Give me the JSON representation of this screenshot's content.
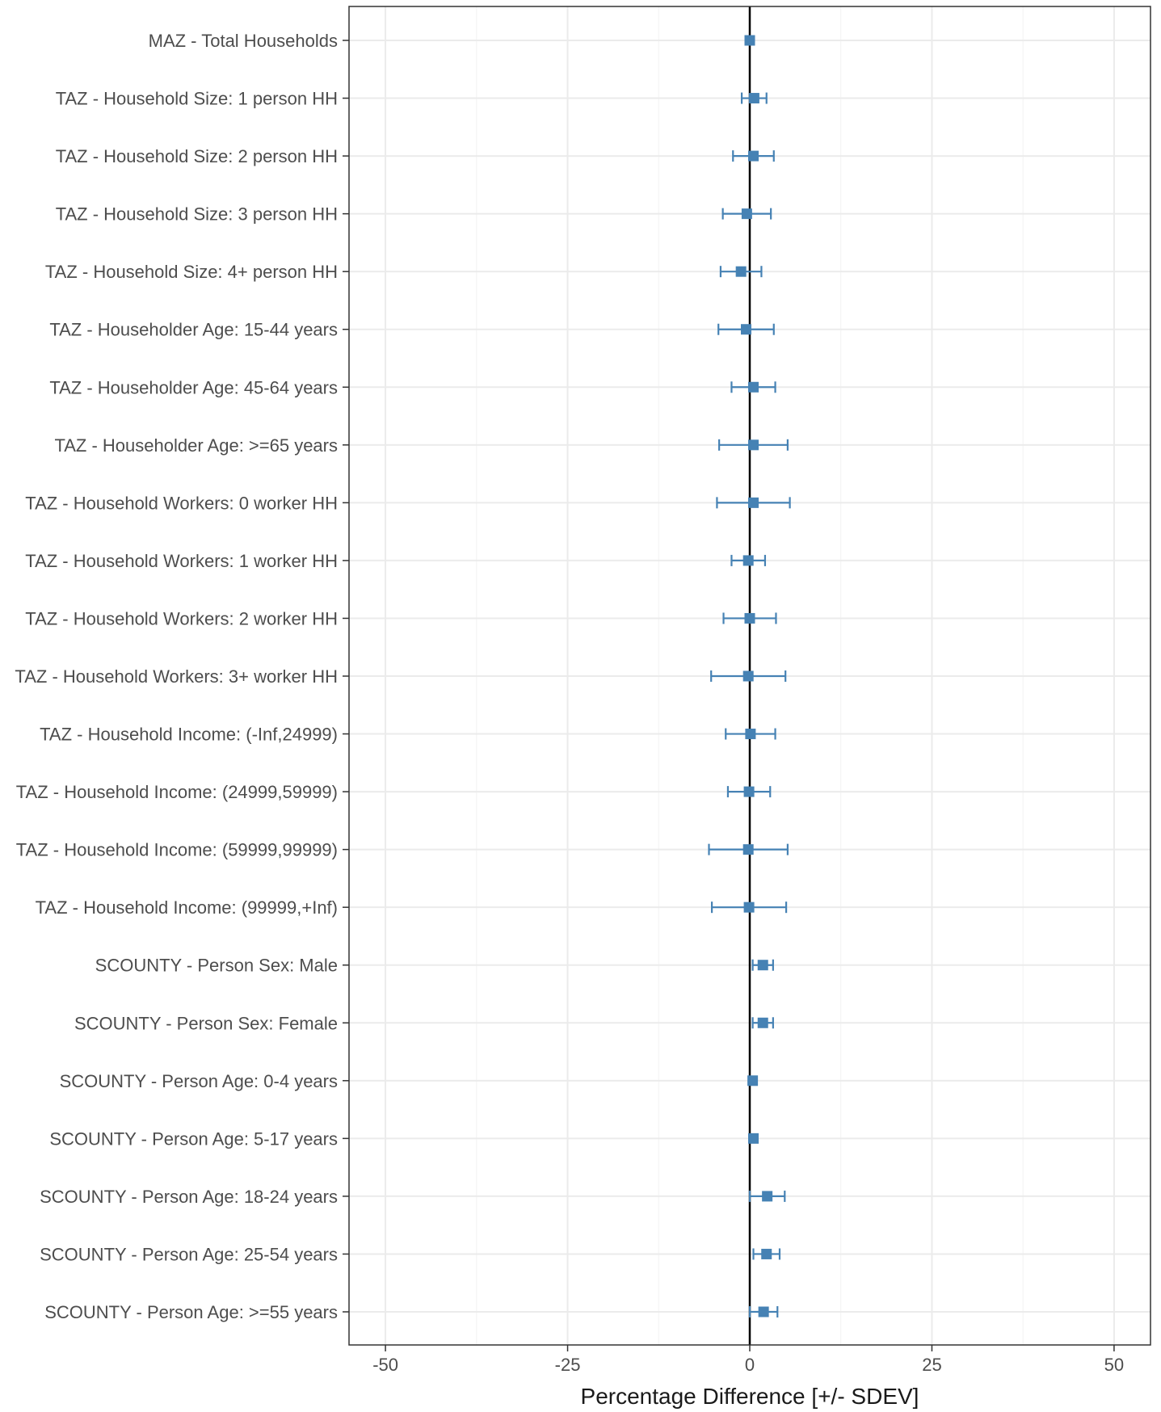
{
  "chart_data": {
    "type": "scatter",
    "title": "",
    "xlabel": "Percentage Difference [+/- SDEV]",
    "ylabel": "",
    "xlim": [
      -55,
      55
    ],
    "xticks": [
      -50,
      -25,
      0,
      25,
      50
    ],
    "xtick_labels": [
      "-50",
      "-25",
      "0",
      "25",
      "50"
    ],
    "grid": true,
    "reference_line_x": 0,
    "marker_color": "#4682b4",
    "errorbar_color": "#4682b4",
    "categories": [
      "MAZ - Total Households",
      "TAZ - Household Size: 1 person HH",
      "TAZ - Household Size: 2 person HH",
      "TAZ - Household Size: 3 person HH",
      "TAZ - Household Size: 4+ person HH",
      "TAZ - Householder Age: 15-44 years",
      "TAZ - Householder Age: 45-64 years",
      "TAZ - Householder Age: >=65 years",
      "TAZ - Household Workers: 0 worker HH",
      "TAZ - Household Workers: 1 worker HH",
      "TAZ - Household Workers: 2 worker HH",
      "TAZ - Household Workers: 3+ worker HH",
      "TAZ - Household Income: (-Inf,24999)",
      "TAZ - Household Income: (24999,59999)",
      "TAZ - Household Income: (59999,99999)",
      "TAZ - Household Income: (99999,+Inf)",
      "SCOUNTY - Person Sex: Male",
      "SCOUNTY - Person Sex: Female",
      "SCOUNTY - Person Age: 0-4 years",
      "SCOUNTY - Person Age: 5-17 years",
      "SCOUNTY - Person Age: 18-24 years",
      "SCOUNTY - Person Age: 25-54 years",
      "SCOUNTY - Person Age: >=55 years"
    ],
    "values": [
      0.0,
      0.6,
      0.5,
      -0.4,
      -1.2,
      -0.5,
      0.5,
      0.5,
      0.5,
      -0.2,
      0.0,
      -0.2,
      0.1,
      -0.1,
      -0.2,
      -0.1,
      1.8,
      1.8,
      0.4,
      0.5,
      2.4,
      2.3,
      1.9
    ],
    "sdev": [
      0.0,
      1.7,
      2.8,
      3.3,
      2.8,
      3.8,
      3.0,
      4.7,
      5.0,
      2.3,
      3.6,
      5.1,
      3.4,
      2.9,
      5.4,
      5.1,
      1.4,
      1.4,
      0.0,
      0.0,
      2.4,
      1.8,
      1.9
    ]
  }
}
